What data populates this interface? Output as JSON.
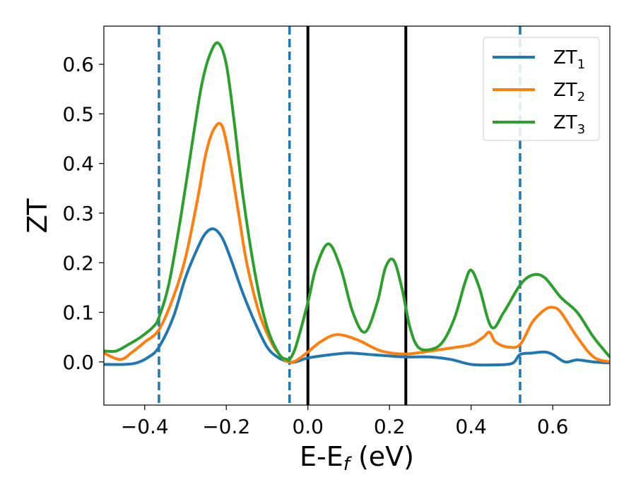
{
  "chart_data": {
    "type": "line",
    "title": "",
    "xlabel": "E-E",
    "xlabel_subscript": "f",
    "xlabel_suffix": " (eV)",
    "ylabel": "ZT",
    "xlim": [
      -0.5,
      0.74
    ],
    "ylim": [
      -0.087,
      0.677
    ],
    "x_ticks": [
      -0.4,
      -0.2,
      0.0,
      0.2,
      0.4,
      0.6
    ],
    "x_tick_labels": [
      "−0.4",
      "−0.2",
      "0.0",
      "0.2",
      "0.4",
      "0.6"
    ],
    "y_ticks": [
      0.0,
      0.1,
      0.2,
      0.3,
      0.4,
      0.5,
      0.6
    ],
    "y_tick_labels": [
      "0.0",
      "0.1",
      "0.2",
      "0.3",
      "0.4",
      "0.5",
      "0.6"
    ],
    "grid": false,
    "legend_position": "top-right",
    "vertical_lines": [
      {
        "x": -0.365,
        "style": "dashed",
        "color": "#1f77b4"
      },
      {
        "x": -0.045,
        "style": "dashed",
        "color": "#1f77b4"
      },
      {
        "x": 0.0,
        "style": "solid",
        "color": "#000000"
      },
      {
        "x": 0.24,
        "style": "solid",
        "color": "#000000"
      },
      {
        "x": 0.52,
        "style": "dashed",
        "color": "#1f77b4"
      }
    ],
    "series": [
      {
        "name": "ZT",
        "subscript": "1",
        "color": "#1f77b4",
        "x": [
          -0.5,
          -0.45,
          -0.42,
          -0.39,
          -0.365,
          -0.33,
          -0.3,
          -0.27,
          -0.25,
          -0.23,
          -0.21,
          -0.19,
          -0.16,
          -0.13,
          -0.1,
          -0.075,
          -0.055,
          -0.045,
          -0.03,
          0.0,
          0.05,
          0.1,
          0.15,
          0.2,
          0.24,
          0.3,
          0.35,
          0.4,
          0.45,
          0.5,
          0.52,
          0.55,
          0.58,
          0.6,
          0.63,
          0.66,
          0.7,
          0.74
        ],
        "y": [
          -0.005,
          -0.005,
          -0.002,
          0.01,
          0.03,
          0.09,
          0.17,
          0.23,
          0.26,
          0.268,
          0.25,
          0.21,
          0.14,
          0.08,
          0.03,
          0.01,
          0.002,
          0.0,
          0.0,
          0.008,
          0.014,
          0.018,
          0.015,
          0.012,
          0.01,
          0.01,
          0.005,
          -0.005,
          -0.006,
          -0.003,
          0.015,
          0.018,
          0.02,
          0.015,
          0.0,
          0.004,
          0.0,
          -0.002
        ]
      },
      {
        "name": "ZT",
        "subscript": "2",
        "color": "#ff7f0e",
        "x": [
          -0.5,
          -0.46,
          -0.43,
          -0.4,
          -0.365,
          -0.33,
          -0.3,
          -0.27,
          -0.25,
          -0.23,
          -0.21,
          -0.19,
          -0.17,
          -0.15,
          -0.12,
          -0.09,
          -0.07,
          -0.055,
          -0.045,
          -0.03,
          0.0,
          0.03,
          0.07,
          0.12,
          0.18,
          0.24,
          0.3,
          0.35,
          0.4,
          0.43,
          0.445,
          0.46,
          0.49,
          0.52,
          0.55,
          0.58,
          0.6,
          0.62,
          0.66,
          0.7,
          0.74
        ],
        "y": [
          0.018,
          0.005,
          0.02,
          0.04,
          0.065,
          0.13,
          0.21,
          0.33,
          0.42,
          0.47,
          0.475,
          0.4,
          0.3,
          0.2,
          0.1,
          0.04,
          0.015,
          0.003,
          0.0,
          0.002,
          0.02,
          0.04,
          0.055,
          0.045,
          0.022,
          0.016,
          0.022,
          0.028,
          0.035,
          0.05,
          0.06,
          0.04,
          0.03,
          0.035,
          0.08,
          0.105,
          0.11,
          0.1,
          0.05,
          0.01,
          0.0
        ]
      },
      {
        "name": "ZT",
        "subscript": "3",
        "color": "#2ca02c",
        "x": [
          -0.5,
          -0.47,
          -0.44,
          -0.41,
          -0.38,
          -0.365,
          -0.34,
          -0.31,
          -0.28,
          -0.26,
          -0.24,
          -0.22,
          -0.2,
          -0.18,
          -0.16,
          -0.13,
          -0.1,
          -0.07,
          -0.05,
          -0.045,
          -0.03,
          0.0,
          0.02,
          0.05,
          0.08,
          0.11,
          0.14,
          0.17,
          0.19,
          0.21,
          0.23,
          0.25,
          0.27,
          0.3,
          0.33,
          0.36,
          0.385,
          0.4,
          0.42,
          0.45,
          0.48,
          0.52,
          0.55,
          0.58,
          0.62,
          0.66,
          0.7,
          0.74
        ],
        "y": [
          0.022,
          0.022,
          0.035,
          0.05,
          0.07,
          0.09,
          0.16,
          0.3,
          0.46,
          0.56,
          0.62,
          0.643,
          0.6,
          0.48,
          0.34,
          0.18,
          0.07,
          0.015,
          0.005,
          0.005,
          0.03,
          0.12,
          0.19,
          0.238,
          0.19,
          0.1,
          0.06,
          0.12,
          0.19,
          0.205,
          0.15,
          0.07,
          0.03,
          0.025,
          0.04,
          0.09,
          0.16,
          0.185,
          0.15,
          0.07,
          0.1,
          0.155,
          0.175,
          0.17,
          0.13,
          0.1,
          0.05,
          0.01
        ]
      }
    ]
  }
}
